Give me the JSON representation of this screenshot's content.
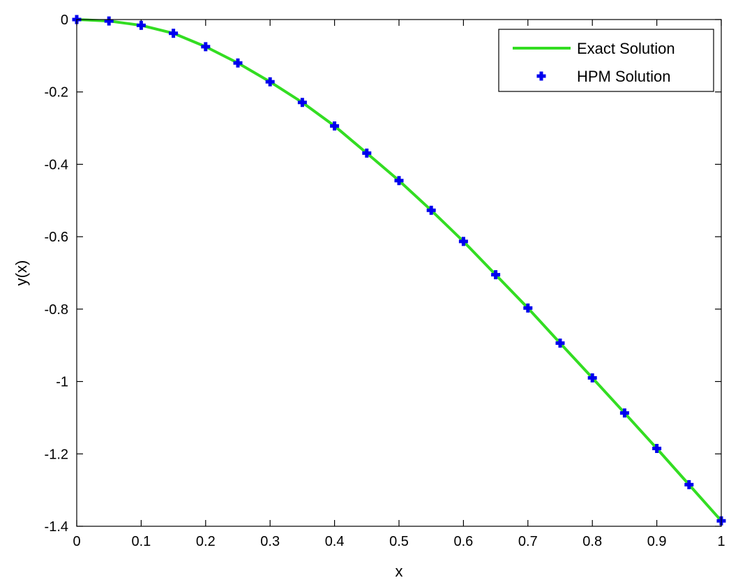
{
  "chart_data": {
    "type": "line",
    "title": "",
    "xlabel": "x",
    "ylabel": "y(x)",
    "xlim": [
      0,
      1
    ],
    "ylim": [
      -1.4,
      0
    ],
    "xticks": [
      0,
      0.1,
      0.2,
      0.3,
      0.4,
      0.5,
      0.6,
      0.7,
      0.8,
      0.9,
      1
    ],
    "xtick_labels": [
      "0",
      "0.1",
      "0.2",
      "0.3",
      "0.4",
      "0.5",
      "0.6",
      "0.7",
      "0.8",
      "0.9",
      "1"
    ],
    "yticks": [
      0,
      -0.2,
      -0.4,
      -0.6,
      -0.8,
      -1,
      -1.2,
      -1.4
    ],
    "ytick_labels": [
      "0",
      "-0.2",
      "-0.4",
      "-0.6",
      "-0.8",
      "-1",
      "-1.2",
      "-1.4"
    ],
    "grid": false,
    "legend_position": "top-right",
    "series": [
      {
        "name": "Exact Solution",
        "style": "line",
        "color": "#33dd22",
        "x": [
          0,
          0.05,
          0.1,
          0.15,
          0.2,
          0.25,
          0.3,
          0.35,
          0.4,
          0.45,
          0.5,
          0.55,
          0.6,
          0.65,
          0.7,
          0.75,
          0.8,
          0.85,
          0.9,
          0.95,
          1
        ],
        "y": [
          0,
          -0.004,
          -0.016,
          -0.038,
          -0.075,
          -0.12,
          -0.172,
          -0.229,
          -0.294,
          -0.369,
          -0.445,
          -0.527,
          -0.613,
          -0.705,
          -0.797,
          -0.894,
          -0.99,
          -1.087,
          -1.185,
          -1.285,
          -1.385
        ]
      },
      {
        "name": "HPM Solution",
        "style": "markers",
        "marker": "plus",
        "color": "#0000ee",
        "x": [
          0,
          0.05,
          0.1,
          0.15,
          0.2,
          0.25,
          0.3,
          0.35,
          0.4,
          0.45,
          0.5,
          0.55,
          0.6,
          0.65,
          0.7,
          0.75,
          0.8,
          0.85,
          0.9,
          0.95,
          1
        ],
        "y": [
          0,
          -0.004,
          -0.016,
          -0.038,
          -0.075,
          -0.12,
          -0.172,
          -0.229,
          -0.294,
          -0.369,
          -0.445,
          -0.527,
          -0.613,
          -0.705,
          -0.797,
          -0.894,
          -0.99,
          -1.087,
          -1.185,
          -1.285,
          -1.385
        ]
      }
    ]
  }
}
